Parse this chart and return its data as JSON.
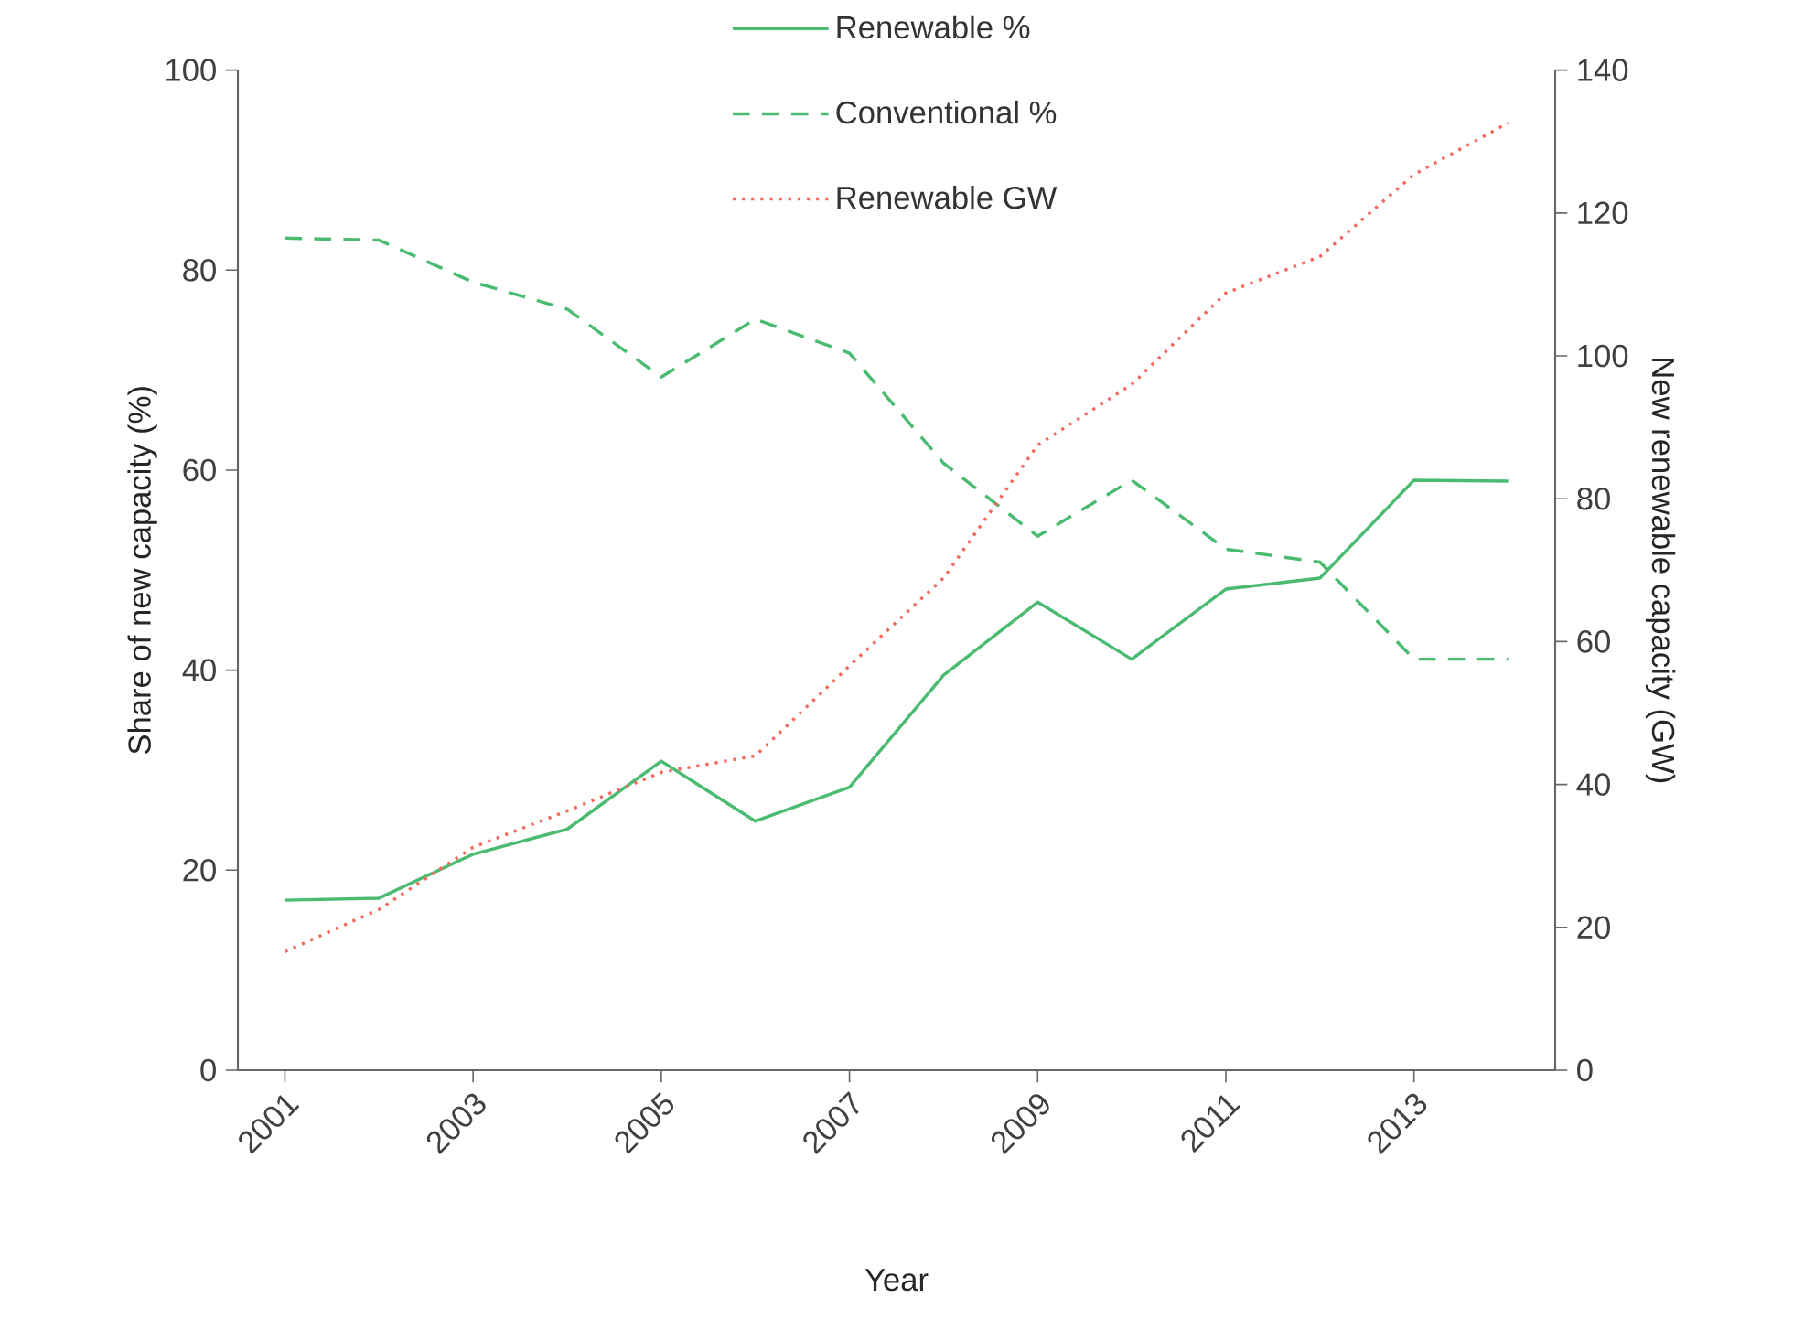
{
  "chart_data": {
    "type": "line",
    "xlabel": "Year",
    "ylabel": "Share of new capacity (%)",
    "y2label": "New renewable capacity (GW)",
    "x": [
      2001,
      2002,
      2003,
      2004,
      2005,
      2006,
      2007,
      2008,
      2009,
      2010,
      2011,
      2012,
      2013,
      2014
    ],
    "xlim": [
      2000.5,
      2014.5
    ],
    "xticks": [
      2001,
      2003,
      2005,
      2007,
      2009,
      2011,
      2013
    ],
    "ylim": [
      0,
      100
    ],
    "yticks": [
      0,
      20,
      40,
      60,
      80,
      100
    ],
    "y2lim": [
      0,
      140
    ],
    "y2ticks": [
      0,
      20,
      40,
      60,
      80,
      100,
      120,
      140
    ],
    "grid": false,
    "legend": "top",
    "marker": "none",
    "series": [
      {
        "name": "Renewable %",
        "color": "#4cbb72",
        "line_style": "solid",
        "values": [
          17.0,
          17.2,
          21.6,
          24.1,
          30.9,
          24.9,
          28.3,
          39.5,
          46.8,
          41.1,
          48.1,
          49.2,
          59.0,
          58.9
        ]
      },
      {
        "name": "Conventional %",
        "color": "#4cbb72",
        "line_style": "dashed",
        "values": [
          83.2,
          83.0,
          78.8,
          76.1,
          69.3,
          75.1,
          71.7,
          60.7,
          53.4,
          59.0,
          52.1,
          50.8,
          41.1,
          41.1
        ]
      },
      {
        "name": "Renewable GW",
        "color": "#f26a5e",
        "line_style": "dotted",
        "axis": "y2",
        "values": [
          16.6,
          22.5,
          31.2,
          36.3,
          41.7,
          44.0,
          56.6,
          68.9,
          87.5,
          96.0,
          108.8,
          113.9,
          125.4,
          132.6
        ]
      }
    ]
  }
}
